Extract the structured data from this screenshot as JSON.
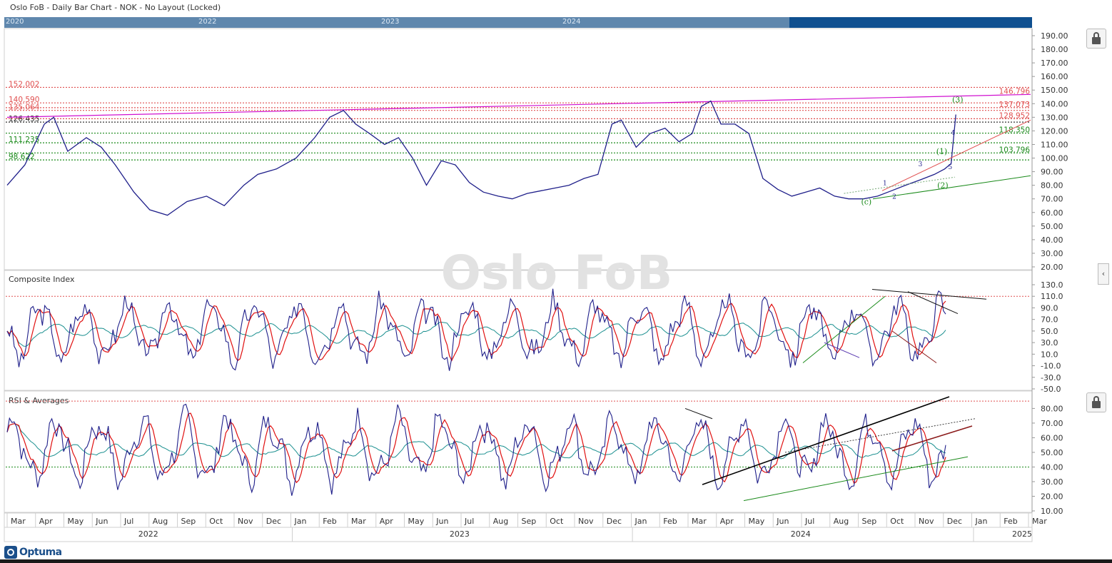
{
  "window": {
    "title": "Oslo FoB - Daily Bar Chart - NOK - No Layout (Locked)"
  },
  "overview": {
    "years": [
      "2020",
      "2022",
      "2023",
      "2024"
    ]
  },
  "watermark": "Oslo FoB",
  "logo": "Optuma",
  "icons": {
    "lock": "lock-icon",
    "collapse": "chevron-left-icon"
  },
  "colors": {
    "price": "#1f1f8a",
    "rsi_fast": "#e01010",
    "rsi_slow": "#1a8f8f",
    "resistance": "#e05050",
    "support": "#1a8a1a",
    "trend_magenta": "#d010d0",
    "overview_bar": "#0f4f8f"
  },
  "chart_data": [
    {
      "type": "line",
      "panel": "price",
      "title": "",
      "y_ticks": [
        "190.00",
        "180.00",
        "170.00",
        "160.00",
        "150.00",
        "140.00",
        "130.00",
        "120.00",
        "110.00",
        "100.00",
        "90.00",
        "80.00",
        "70.00",
        "60.00",
        "50.00",
        "40.00",
        "30.00",
        "20.00"
      ],
      "ylim": [
        15,
        195
      ],
      "series": [
        {
          "dates": [
            "2022-03-01",
            "2022-03-20",
            "2022-04-10",
            "2022-04-20",
            "2022-05-05",
            "2022-05-25",
            "2022-06-10",
            "2022-06-25",
            "2022-07-15",
            "2022-08-01",
            "2022-08-20",
            "2022-09-10",
            "2022-10-01",
            "2022-10-20",
            "2022-11-10",
            "2022-11-25",
            "2022-12-15",
            "2023-01-05",
            "2023-01-25",
            "2023-02-10",
            "2023-02-25",
            "2023-03-10",
            "2023-03-25",
            "2023-04-10",
            "2023-04-25",
            "2023-05-10",
            "2023-05-25",
            "2023-06-10",
            "2023-06-25",
            "2023-07-10",
            "2023-07-25",
            "2023-08-10",
            "2023-08-25",
            "2023-09-10",
            "2023-09-25",
            "2023-10-10",
            "2023-10-25",
            "2023-11-10",
            "2023-11-25",
            "2023-12-10",
            "2023-12-20",
            "2024-01-05",
            "2024-01-20",
            "2024-02-05",
            "2024-02-20",
            "2024-03-05",
            "2024-03-15",
            "2024-03-25",
            "2024-04-05",
            "2024-04-20",
            "2024-05-05",
            "2024-05-20",
            "2024-06-05",
            "2024-06-20",
            "2024-07-05",
            "2024-07-20",
            "2024-08-05",
            "2024-08-20",
            "2024-09-05",
            "2024-09-20",
            "2024-10-05",
            "2024-10-20",
            "2024-11-05",
            "2024-11-20",
            "2024-12-01",
            "2024-12-08",
            "2024-12-13"
          ],
          "values": [
            80,
            95,
            125,
            130,
            105,
            115,
            108,
            95,
            75,
            62,
            58,
            68,
            72,
            65,
            80,
            88,
            92,
            100,
            115,
            130,
            135,
            125,
            118,
            110,
            115,
            100,
            80,
            98,
            95,
            82,
            75,
            72,
            70,
            74,
            76,
            78,
            80,
            85,
            88,
            125,
            128,
            108,
            118,
            122,
            112,
            118,
            138,
            142,
            125,
            125,
            118,
            85,
            77,
            72,
            75,
            78,
            72,
            70,
            70,
            72,
            76,
            80,
            84,
            88,
            92,
            96,
            132
          ]
        }
      ],
      "annotations": [
        "(c)",
        "1",
        "2",
        "3",
        "4",
        "5",
        "(1)",
        "(2)",
        "(3)"
      ],
      "levels": [
        "152.002",
        "140.590",
        "137.073",
        "135.064",
        "128.952",
        "126.435",
        "118.350",
        "111.235",
        "103.796",
        "98.622",
        "146.796"
      ]
    },
    {
      "type": "line",
      "panel": "oscillator",
      "title": "Composite Index",
      "y_ticks": [
        "130.0",
        "110.0",
        "90.0",
        "70.0",
        "50.0",
        "30.0",
        "10.0",
        "-10.0",
        "-30.0",
        "-50.0"
      ],
      "ylim": [
        -50,
        140
      ],
      "reference_level": 110
    },
    {
      "type": "line",
      "panel": "oscillator",
      "title": "RSI & Averages",
      "y_ticks": [
        "80.00",
        "70.00",
        "60.00",
        "50.00",
        "40.00",
        "30.00",
        "20.00",
        "10.00"
      ],
      "ylim": [
        10,
        88
      ],
      "reference_levels": [
        85,
        40
      ]
    }
  ],
  "x_axis": {
    "months": [
      "Mar",
      "Apr",
      "May",
      "Jun",
      "Jul",
      "Aug",
      "Sep",
      "Oct",
      "Nov",
      "Dec",
      "Jan",
      "Feb",
      "Mar",
      "Apr",
      "May",
      "Jun",
      "Jul",
      "Aug",
      "Sep",
      "Oct",
      "Nov",
      "Dec",
      "Jan",
      "Feb",
      "Mar",
      "Apr",
      "May",
      "Jun",
      "Jul",
      "Aug",
      "Sep",
      "Oct",
      "Nov",
      "Dec",
      "Jan",
      "Feb",
      "Mar"
    ],
    "years": [
      "2022",
      "2023",
      "2024",
      "2025"
    ]
  }
}
